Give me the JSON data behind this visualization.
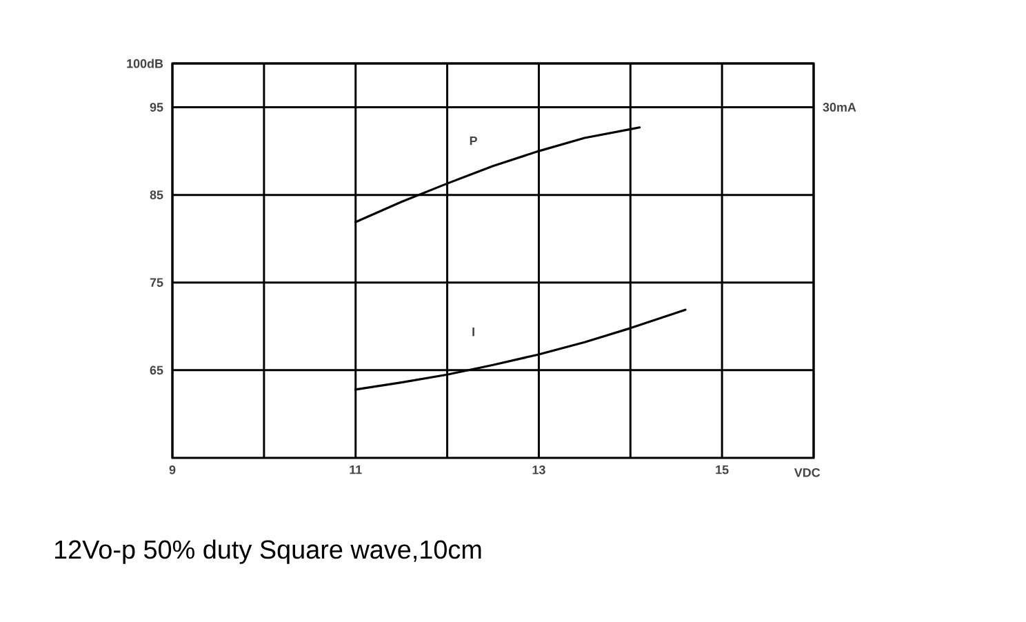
{
  "chart_data": {
    "type": "line",
    "series": [
      {
        "name": "P",
        "color": "#000000",
        "x": [
          11,
          11.5,
          12,
          12.5,
          13,
          13.5,
          14,
          14.1
        ],
        "values": [
          81.9,
          84.2,
          86.3,
          88.3,
          90.0,
          91.5,
          92.5,
          92.7
        ]
      },
      {
        "name": "I",
        "color": "#000000",
        "x": [
          11,
          11.5,
          12,
          12.5,
          13,
          13.5,
          14,
          14.6
        ],
        "values": [
          62.8,
          63.6,
          64.5,
          65.6,
          66.8,
          68.2,
          69.8,
          71.9
        ]
      }
    ],
    "xlabel": "VDC",
    "xlim": [
      9,
      16
    ],
    "xticks": [
      9,
      {
        "value": 10,
        "label": null
      },
      11,
      {
        "value": 12,
        "label": null
      },
      13,
      {
        "value": 14,
        "label": null
      },
      15,
      {
        "value": 16,
        "label": null
      }
    ],
    "ylim": [
      55,
      100
    ],
    "yticks": [
      65,
      75,
      85,
      95,
      {
        "value": 100,
        "label": "100dB"
      }
    ],
    "grid": true,
    "annotations": [
      "30mA",
      "12Vo-p 50% duty Square wave,10cm"
    ]
  }
}
